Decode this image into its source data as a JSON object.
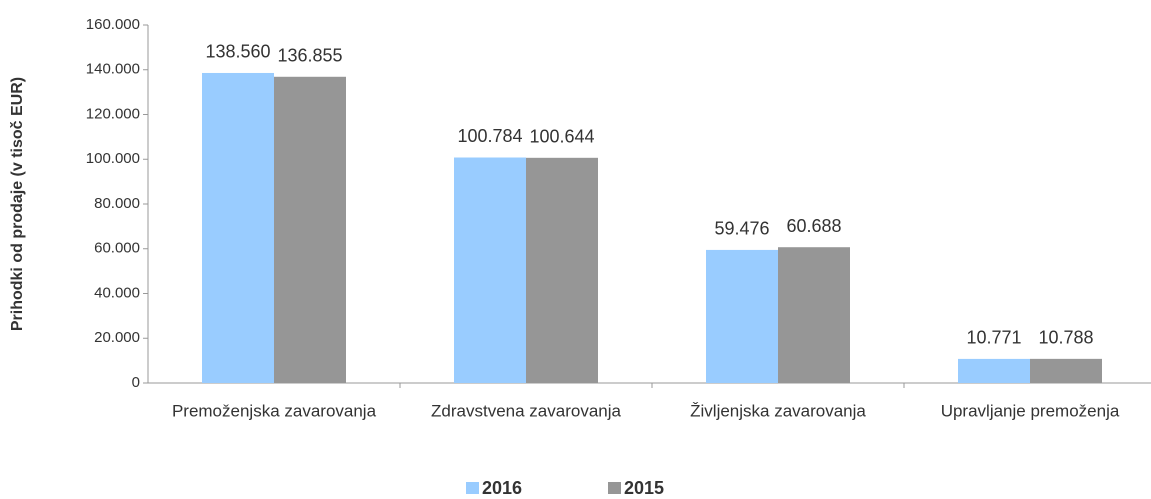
{
  "chart_data": {
    "type": "bar",
    "y_label": "Prihodki  od  prodaje  (v tisoč EUR)",
    "categories": [
      "Premoženjska zavarovanja",
      "Zdravstvena zavarovanja",
      "Življenjska zavarovanja",
      "Upravljanje premoženja"
    ],
    "series": [
      {
        "name": "2016",
        "color": "#99ccff",
        "values": [
          138560,
          100784,
          59476,
          10771
        ],
        "value_labels": [
          "138.560",
          "100.784",
          "59.476",
          "10.771"
        ]
      },
      {
        "name": "2015",
        "color": "#969696",
        "values": [
          136855,
          100644,
          60688,
          10788
        ],
        "value_labels": [
          "136.855",
          "100.644",
          "60.688",
          "10.788"
        ]
      }
    ],
    "ylim": [
      0,
      160000
    ],
    "yticks": [
      0,
      {
        "value": 20000,
        "label": "20.000"
      },
      {
        "value": 40000,
        "label": "40.000"
      },
      {
        "value": 60000,
        "label": "60.000"
      },
      {
        "value": 80000,
        "label": "80.000"
      },
      {
        "value": 100000,
        "label": "100.000"
      },
      {
        "value": 120000,
        "label": "120.000"
      },
      {
        "value": 140000,
        "label": "140.000"
      },
      {
        "value": 160000,
        "label": "160.000"
      }
    ],
    "legend": "bottom"
  }
}
